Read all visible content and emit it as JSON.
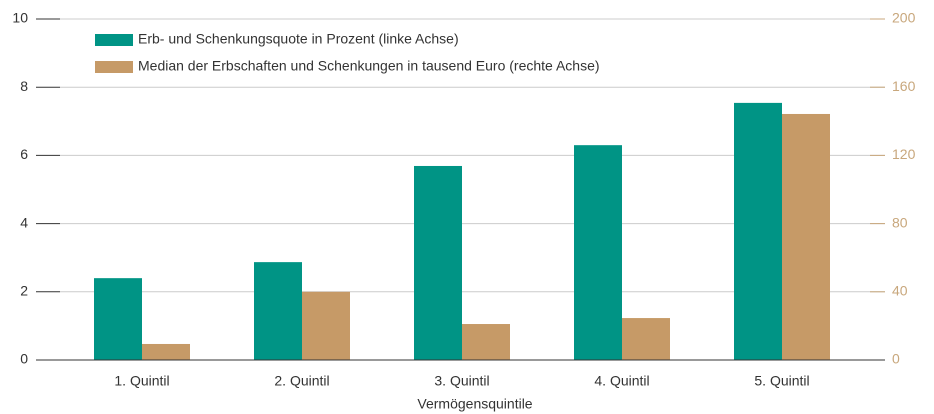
{
  "chart_data": {
    "type": "bar",
    "x_label": "Vermögensquintile",
    "categories": [
      "1. Quintil",
      "2. Quintil",
      "3. Quintil",
      "4. Quintil",
      "5. Quintil"
    ],
    "series": [
      {
        "name": "Erb- und Schenkungsquote in Prozent (linke Achse)",
        "color": "#009485",
        "values": [
          2.4,
          2.87,
          5.69,
          6.3,
          7.54
        ]
      },
      {
        "name": "Median der Erbschaften und Schenkungen in tausend Euro (rechte Achse)",
        "color": "#c69a67",
        "axis": "y2",
        "values": [
          9.4,
          40,
          21.1,
          24.6,
          144.3
        ]
      }
    ],
    "ylim": [
      0,
      10
    ],
    "yticks": [
      0,
      2,
      4,
      6,
      8,
      10
    ],
    "y2lim": [
      0,
      200
    ],
    "y2ticks": [
      0,
      40,
      80,
      120,
      160,
      200
    ],
    "grid": true,
    "legend": "top-left"
  }
}
